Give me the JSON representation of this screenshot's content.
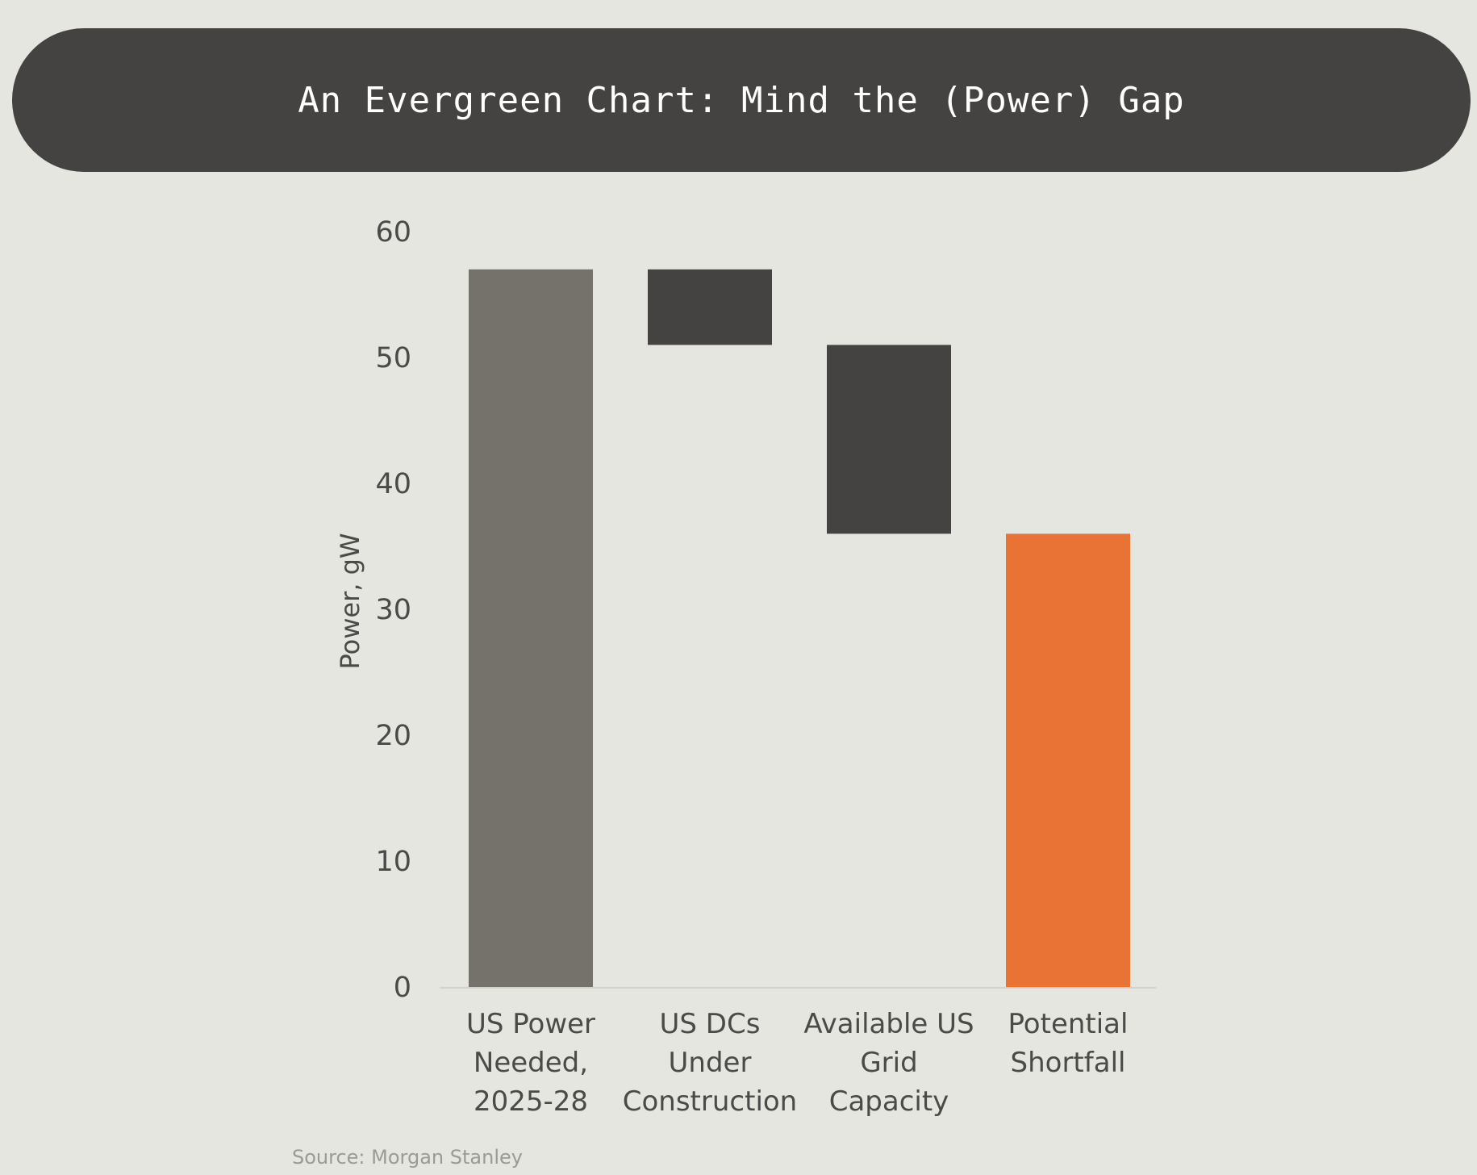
{
  "title": "An Evergreen Chart: Mind the (Power) Gap",
  "source": "Source: Morgan Stanley",
  "colors": {
    "background": "#e6e6e0",
    "banner": "#444341",
    "total_bar": "#75726b",
    "decrease_bar": "#444341",
    "shortfall_bar": "#e87335",
    "axis_line": "#d2d2cc"
  },
  "chart_data": {
    "type": "bar",
    "subtype": "waterfall",
    "title": "An Evergreen Chart: Mind the (Power) Gap",
    "xlabel": "",
    "ylabel": "Power, gW",
    "ylim": [
      0,
      60
    ],
    "yticks": [
      "0",
      "10",
      "20",
      "30",
      "40",
      "50",
      "60"
    ],
    "grid": false,
    "categories": [
      [
        "US Power",
        "Needed,",
        "2025-28"
      ],
      [
        "US DCs",
        "Under",
        "Construction"
      ],
      [
        "Available US",
        "Grid",
        "Capacity"
      ],
      [
        "Potential",
        "Shortfall"
      ]
    ],
    "bars": [
      {
        "name": "US Power Needed, 2025-28",
        "start": 0,
        "end": 57,
        "kind": "total"
      },
      {
        "name": "US DCs Under Construction",
        "start": 51,
        "end": 57,
        "kind": "decrease"
      },
      {
        "name": "Available US Grid Capacity",
        "start": 36,
        "end": 51,
        "kind": "decrease"
      },
      {
        "name": "Potential Shortfall",
        "start": 0,
        "end": 36,
        "kind": "shortfall"
      }
    ]
  }
}
